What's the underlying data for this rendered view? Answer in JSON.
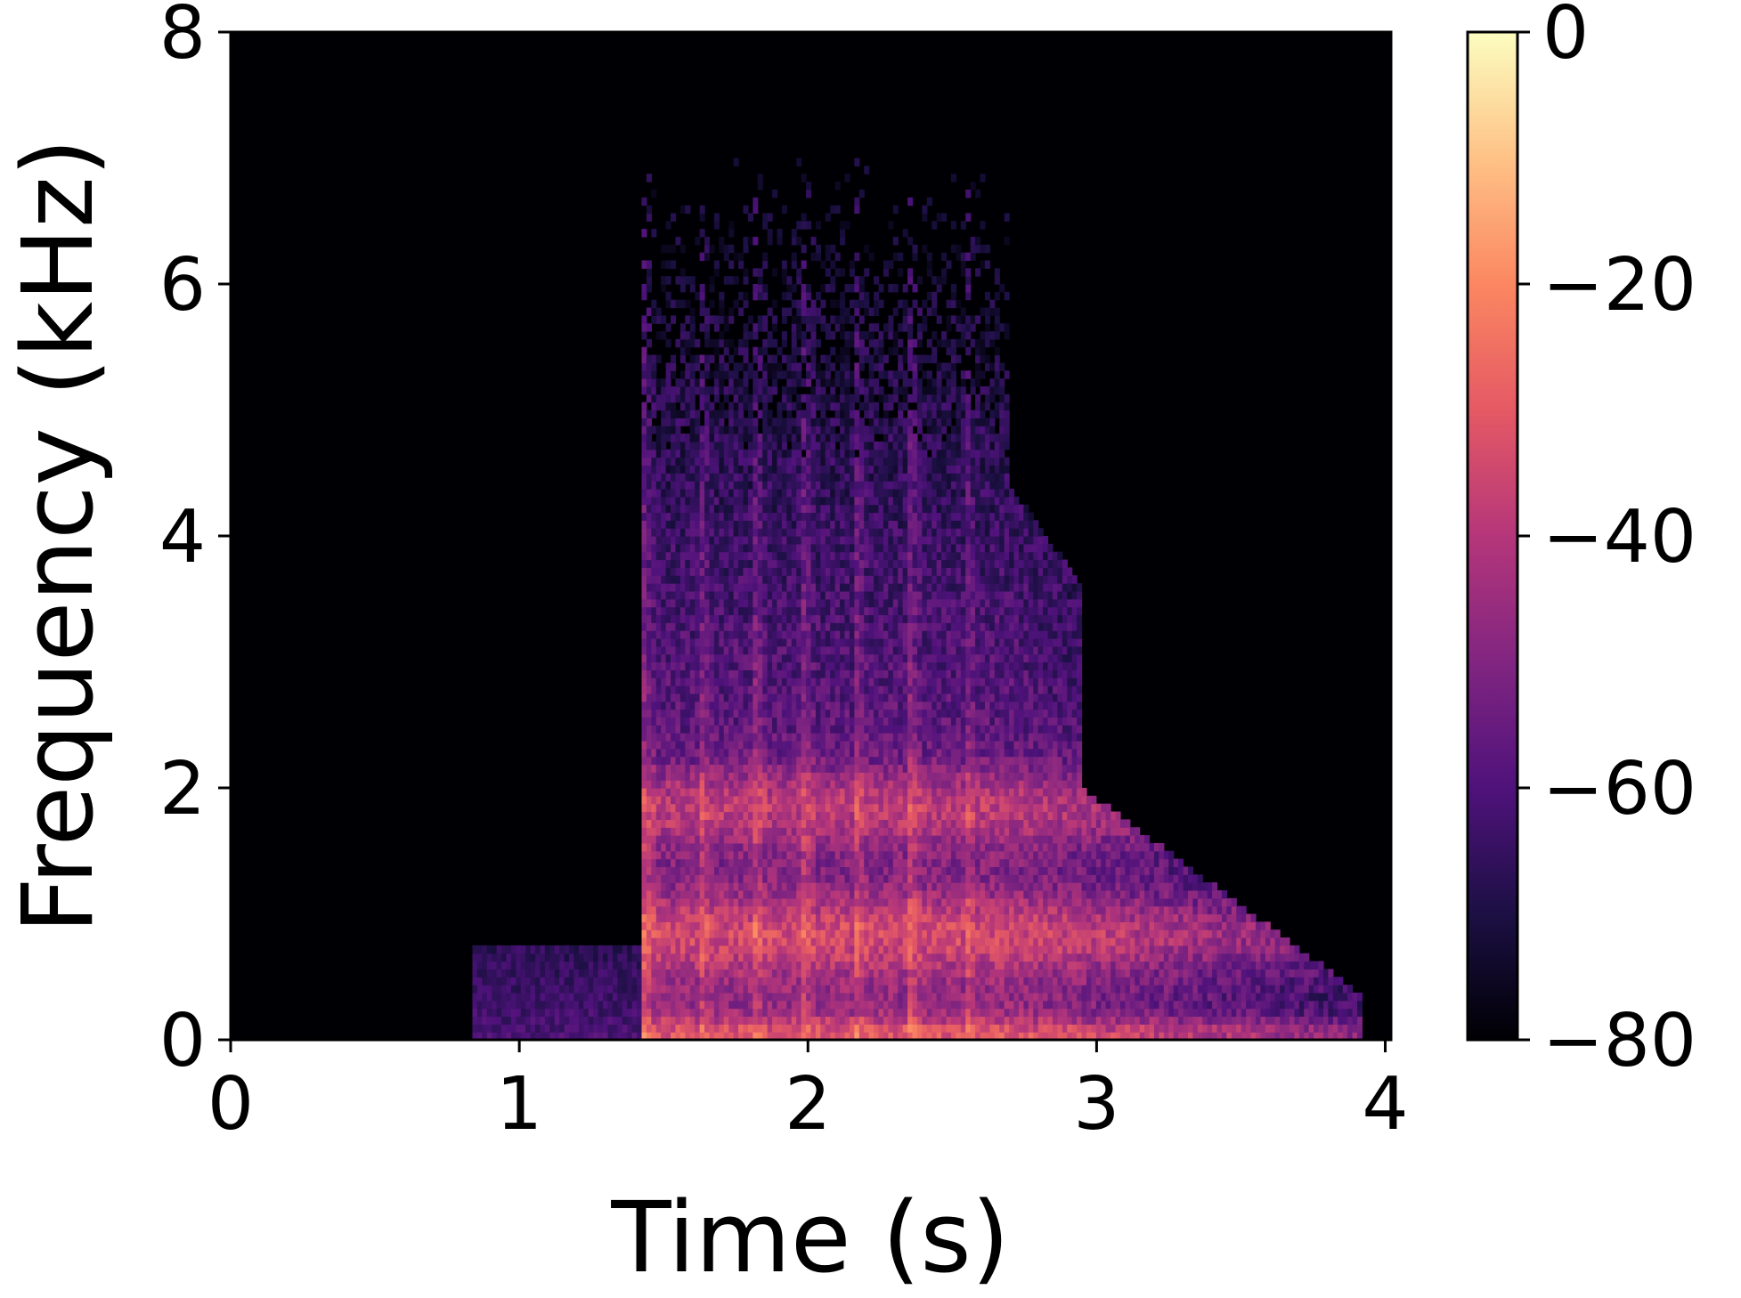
{
  "chart_data": {
    "type": "heatmap",
    "title": "",
    "xlabel": "Time (s)",
    "ylabel": "Frequency (kHz)",
    "xlim": [
      0,
      4.02
    ],
    "ylim": [
      0,
      8
    ],
    "xticks": [
      "0",
      "1",
      "2",
      "3",
      "4"
    ],
    "yticks": [
      "0",
      "2",
      "4",
      "6",
      "8"
    ],
    "colorbar": {
      "colormap": "magma",
      "range": [
        -80,
        0
      ],
      "ticks": [
        "0",
        "−20",
        "−40",
        "−60",
        "−80"
      ]
    },
    "features": {
      "background_db": -80,
      "low_frequency_onset": {
        "time_start": 0.83,
        "time_end": 1.43,
        "freq_max_khz": 0.75
      },
      "broadband_onset": {
        "time": 1.43,
        "freq_max_khz": 7.3
      },
      "vertical_striations_s": [
        1.43,
        1.62,
        1.81,
        1.98,
        2.16,
        2.35,
        2.54
      ],
      "band_centers_khz": [
        0.05,
        0.85,
        1.85
      ],
      "decay_tail_end_s": 3.92
    },
    "grid": false,
    "legend": "none"
  },
  "colors": {
    "colormap_stops": [
      "#000004",
      "#1c1044",
      "#4f127b",
      "#812581",
      "#b5367a",
      "#e55964",
      "#fb8761",
      "#fec287",
      "#fcfdbf"
    ]
  }
}
